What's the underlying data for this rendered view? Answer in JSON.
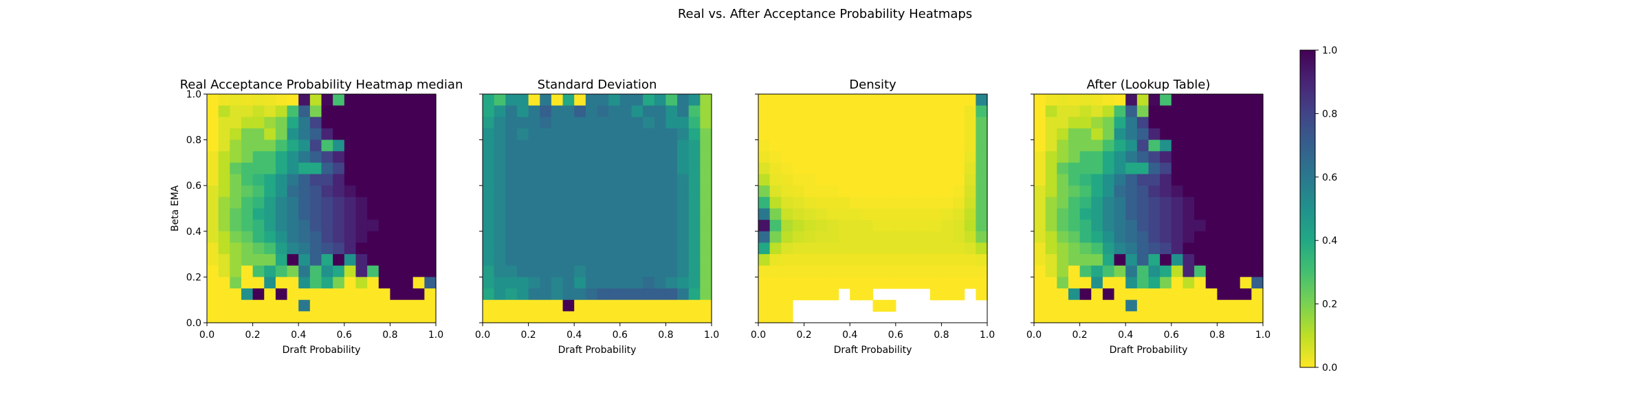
{
  "figure": {
    "title": "Real vs. After Acceptance Probability Heatmaps"
  },
  "chart_data": [
    {
      "type": "heatmap",
      "title": "Real Acceptance Probability Heatmap median",
      "xlabel": "Draft Probability",
      "ylabel": "Beta EMA",
      "xlim": [
        0,
        1
      ],
      "ylim": [
        0,
        1
      ],
      "xticks": [
        "0.0",
        "0.2",
        "0.4",
        "0.6",
        "0.8",
        "1.0"
      ],
      "yticks": [
        "0.0",
        "0.2",
        "0.4",
        "0.6",
        "0.8",
        "1.0"
      ],
      "grid_size": [
        20,
        20
      ],
      "rows_top_to_bottom": [
        "0.00 0.02 0.03 0.02 0.03 0.02 0.01 0.00 0.95 0.10 0.98 0.30 1.0 1.0 1.0 1.0 1.0 1.0 1.0 1.0",
        "0.00 0.10 0.05 0.05 0.08 0.05 0.10 0.30 0.70 0.20 1.0 1.0 1.0 1.0 1.0 1.0 1.0 1.0 1.0 1.0",
        "0.00 0.05 0.05 0.10 0.10 0.15 0.20 0.40 0.60 0.80 1.0 1.0 1.0 1.0 1.0 1.0 1.0 1.0 1.0 1.0",
        "0.00 0.05 0.10 0.20 0.20 0.10 0.20 0.50 0.60 0.70 0.90 1.0 1.0 1.0 1.0 1.0 1.0 1.0 1.0 1.0",
        "0.00 0.05 0.15 0.20 0.20 0.20 0.30 0.40 0.50 0.80 0.30 0.50 1.0 1.0 1.0 1.0 1.0 1.0 1.0 1.0",
        "0.02 0.10 0.15 0.20 0.30 0.30 0.40 0.50 0.60 0.70 0.80 0.90 1.0 1.0 1.0 1.0 1.0 1.0 1.0 1.0",
        "0.02 0.10 0.25 0.30 0.30 0.30 0.40 0.50 0.40 0.40 0.70 0.80 1.0 1.0 1.0 1.0 1.0 1.0 1.0 1.0",
        "0.02 0.10 0.20 0.30 0.35 0.40 0.50 0.60 0.70 0.80 0.80 0.90 1.0 1.0 1.0 1.0 1.0 1.0 1.0 1.0",
        "0.05 0.10 0.20 0.25 0.30 0.40 0.50 0.65 0.70 0.75 0.85 0.90 0.95 1.0 1.0 1.0 1.0 1.0 1.0 1.0",
        "0.05 0.15 0.20 0.30 0.35 0.45 0.55 0.60 0.70 0.75 0.80 0.85 0.90 0.95 1.0 1.0 1.0 1.0 1.0 1.0",
        "0.05 0.15 0.25 0.30 0.40 0.45 0.55 0.60 0.70 0.75 0.80 0.85 0.90 0.95 1.0 1.0 1.0 1.0 1.0 1.0",
        "0.05 0.15 0.25 0.30 0.35 0.45 0.55 0.60 0.65 0.75 0.80 0.85 0.90 0.95 0.95 1.0 1.0 1.0 1.0 1.0",
        "0.05 0.10 0.20 0.25 0.35 0.40 0.50 0.60 0.65 0.70 0.80 0.85 0.90 0.95 1.0 1.0 1.0 1.0 1.0 1.0",
        "0.02 0.10 0.15 0.20 0.25 0.30 0.45 0.55 0.60 0.70 0.75 0.80 0.90 1.0 1.0 1.0 1.0 1.0 1.0 1.0",
        "0.02 0.05 0.15 0.20 0.20 0.20 0.40 1.0 0.50 0.70 0.40 1.0 0.50 0.90 1.0 1.0 1.0 1.0 1.0 1.0",
        "0.00 0.05 0.15 0.00 0.30 0.40 0.30 0.20 0.60 0.30 0.50 0.40 0.10 0.90 0.30 1.0 1.0 1.0 1.0 1.0",
        "0.00 0.00 0.20 0.00 0.00 0.50 0.00 0.00 0.50 0.30 0.40 0.20 0.00 0.10 0.00 1.0 1.0 1.0 0.00 0.70",
        "0.00 0.00 0.00 0.50 1.0 0.00 1.0 0.00 0.00 0.00 0.00 0.00 0.00 0.00 0.00 0.00 1.0 1.0 1.0 0.00",
        "0.00 0.00 0.00 0.00 0.00 0.00 0.00 0.00 0.60 0.00 0.00 0.00 0.00 0.00 0.00 0.00 0.00 0.00 0.00 0.00",
        "0.00 0.00 0.00 0.00 0.00 0.00 0.00 0.00 0.00 0.00 0.00 0.00 0.00 0.00 0.00 0.00 0.00 0.00 0.00 0.00"
      ]
    },
    {
      "type": "heatmap",
      "title": "Standard Deviation",
      "xlabel": "Draft Probability",
      "ylabel": "",
      "xlim": [
        0,
        1
      ],
      "ylim": [
        0,
        1
      ],
      "xticks": [
        "0.0",
        "0.2",
        "0.4",
        "0.6",
        "0.8",
        "1.0"
      ],
      "yticks": [
        "",
        "",
        "",
        "",
        "",
        ""
      ],
      "grid_size": [
        20,
        20
      ],
      "rows_top_to_bottom": [
        "0.40 0.30 0.50 0.50 0.00 0.60 0.00 0.40 0.00 0.60 0.60 0.50 0.60 0.60 0.40 0.50 0.30 0.60 0.50 0.15",
        "0.40 0.50 0.60 0.50 0.60 0.70 0.60 0.60 0.70 0.60 0.65 0.60 0.60 0.50 0.60 0.60 0.50 0.60 0.30 0.15",
        "0.45 0.55 0.60 0.60 0.60 0.65 0.60 0.60 0.60 0.60 0.60 0.60 0.60 0.60 0.55 0.60 0.50 0.50 0.35 0.15",
        "0.50 0.55 0.60 0.55 0.60 0.60 0.60 0.60 0.60 0.60 0.60 0.60 0.60 0.60 0.60 0.60 0.60 0.55 0.40 0.20",
        "0.50 0.55 0.60 0.60 0.60 0.60 0.60 0.60 0.60 0.60 0.60 0.60 0.60 0.60 0.60 0.60 0.60 0.50 0.45 0.20",
        "0.50 0.55 0.60 0.60 0.60 0.60 0.60 0.60 0.60 0.60 0.60 0.60 0.60 0.60 0.60 0.60 0.60 0.50 0.45 0.20",
        "0.50 0.55 0.60 0.60 0.60 0.60 0.60 0.60 0.60 0.60 0.60 0.60 0.60 0.60 0.60 0.60 0.60 0.50 0.45 0.20",
        "0.50 0.55 0.60 0.60 0.60 0.60 0.60 0.60 0.60 0.60 0.60 0.60 0.60 0.60 0.60 0.60 0.60 0.55 0.45 0.20",
        "0.50 0.55 0.60 0.60 0.60 0.60 0.60 0.60 0.60 0.60 0.60 0.60 0.60 0.60 0.60 0.60 0.60 0.55 0.45 0.20",
        "0.50 0.55 0.60 0.60 0.60 0.60 0.60 0.60 0.60 0.60 0.60 0.60 0.60 0.60 0.60 0.60 0.60 0.55 0.45 0.20",
        "0.50 0.55 0.60 0.60 0.60 0.60 0.60 0.60 0.60 0.60 0.60 0.60 0.60 0.60 0.60 0.60 0.60 0.55 0.45 0.20",
        "0.50 0.55 0.60 0.60 0.60 0.60 0.60 0.60 0.60 0.60 0.60 0.60 0.60 0.60 0.60 0.60 0.60 0.55 0.45 0.20",
        "0.50 0.55 0.60 0.60 0.60 0.60 0.60 0.60 0.60 0.60 0.60 0.60 0.60 0.60 0.60 0.60 0.60 0.55 0.45 0.20",
        "0.50 0.55 0.60 0.60 0.60 0.60 0.60 0.60 0.60 0.60 0.60 0.60 0.60 0.60 0.60 0.60 0.60 0.55 0.45 0.20",
        "0.50 0.55 0.60 0.60 0.60 0.60 0.60 0.60 0.60 0.60 0.60 0.60 0.60 0.60 0.60 0.60 0.60 0.55 0.45 0.20",
        "0.45 0.55 0.55 0.60 0.60 0.60 0.60 0.60 0.55 0.60 0.60 0.60 0.60 0.60 0.60 0.60 0.60 0.55 0.45 0.20",
        "0.45 0.50 0.50 0.50 0.55 0.60 0.55 0.60 0.50 0.60 0.60 0.60 0.60 0.60 0.65 0.60 0.55 0.50 0.45 0.20",
        "0.40 0.50 0.45 0.50 0.60 0.60 0.55 0.60 0.60 0.65 0.70 0.70 0.70 0.70 0.70 0.70 0.70 0.60 0.40 0.20",
        "0.00 0.00 0.00 0.00 0.00 0.00 0.00 1.00 0.00 0.00 0.00 0.00 0.00 0.00 0.00 0.00 0.00 0.00 0.00 0.00",
        "0.00 0.00 0.00 0.00 0.00 0.00 0.00 0.00 0.00 0.00 0.00 0.00 0.00 0.00 0.00 0.00 0.00 0.00 0.00 0.00"
      ]
    },
    {
      "type": "heatmap",
      "title": "Density",
      "xlabel": "Draft Probability",
      "ylabel": "",
      "xlim": [
        0,
        1
      ],
      "ylim": [
        0,
        1
      ],
      "xticks": [
        "0.0",
        "0.2",
        "0.4",
        "0.6",
        "0.8",
        "1.0"
      ],
      "yticks": [
        "",
        "",
        "",
        "",
        "",
        ""
      ],
      "grid_size": [
        20,
        20
      ],
      "rows_top_to_bottom": [
        "0.00 0.00 0.00 0.00 0.00 0.00 0.00 0.00 0.00 0.00 0.00 0.00 0.00 0.00 0.00 0.00 0.00 0.00 0.00 0.55",
        "0.00 0.00 0.00 0.00 0.00 0.00 0.00 0.00 0.00 0.00 0.00 0.00 0.00 0.00 0.00 0.00 0.00 0.00 0.02 0.30",
        "0.00 0.00 0.00 0.00 0.00 0.00 0.00 0.00 0.00 0.00 0.00 0.00 0.00 0.00 0.00 0.00 0.00 0.00 0.02 0.25",
        "0.00 0.00 0.00 0.00 0.00 0.00 0.00 0.00 0.00 0.00 0.00 0.00 0.00 0.00 0.00 0.00 0.00 0.00 0.02 0.25",
        "0.01 0.00 0.00 0.00 0.00 0.00 0.00 0.00 0.00 0.00 0.00 0.00 0.00 0.00 0.00 0.00 0.00 0.00 0.02 0.25",
        "0.02 0.01 0.00 0.00 0.00 0.00 0.00 0.00 0.00 0.00 0.00 0.00 0.00 0.00 0.00 0.00 0.00 0.00 0.03 0.25",
        "0.05 0.02 0.01 0.00 0.00 0.00 0.00 0.00 0.00 0.00 0.00 0.00 0.00 0.00 0.00 0.00 0.00 0.00 0.04 0.25",
        "0.10 0.03 0.02 0.01 0.01 0.00 0.00 0.00 0.00 0.00 0.00 0.00 0.00 0.00 0.00 0.00 0.00 0.00 0.05 0.25",
        "0.20 0.05 0.03 0.02 0.01 0.01 0.01 0.00 0.00 0.00 0.00 0.00 0.00 0.00 0.00 0.00 0.00 0.01 0.06 0.25",
        "0.35 0.10 0.05 0.04 0.03 0.02 0.02 0.02 0.01 0.01 0.01 0.01 0.01 0.01 0.01 0.01 0.01 0.02 0.07 0.25",
        "0.60 0.20 0.08 0.06 0.05 0.04 0.03 0.03 0.03 0.02 0.02 0.02 0.02 0.02 0.02 0.02 0.03 0.04 0.09 0.25",
        "0.95 0.30 0.12 0.09 0.07 0.06 0.05 0.04 0.04 0.04 0.03 0.03 0.03 0.03 0.03 0.03 0.04 0.05 0.10 0.25",
        "0.65 0.20 0.10 0.07 0.06 0.05 0.05 0.04 0.04 0.04 0.04 0.04 0.04 0.04 0.04 0.04 0.04 0.05 0.08 0.20",
        "0.40 0.10 0.05 0.04 0.04 0.04 0.04 0.04 0.04 0.04 0.04 0.04 0.04 0.04 0.04 0.04 0.04 0.04 0.05 0.10",
        "0.10 0.03 0.02 0.02 0.02 0.02 0.02 0.02 0.02 0.02 0.02 0.02 0.02 0.02 0.02 0.02 0.02 0.02 0.02 0.03",
        "0.01 0.01 0.01 0.01 0.01 0.01 0.01 0.01 0.01 0.01 0.01 0.01 0.01 0.01 0.01 0.01 0.01 0.01 0.01 0.01",
        "0.00 0.00 0.00 0.00 0.00 0.00 0.00 0.00 0.00 0.00 0.00 0.00 0.00 0.00 0.00 0.00 0.00 0.00 0.00 0.00",
        "0.00 0.00 0.00 0.00 0.00 0.00 0.00 null 0.00 0.00 null null null null null 0.00 0.00 0.00 null 0.00",
        "0.00 0.00 0.00 null null null null null null null 0.00 0.00 null null null null null null null null",
        "0.00 0.00 0.00 null null null null null null null null null null null null null null null null null"
      ]
    },
    {
      "type": "heatmap",
      "title": "After (Lookup Table)",
      "xlabel": "Draft Probability",
      "ylabel": "",
      "xlim": [
        0,
        1
      ],
      "ylim": [
        0,
        1
      ],
      "xticks": [
        "0.0",
        "0.2",
        "0.4",
        "0.6",
        "0.8",
        "1.0"
      ],
      "yticks": [
        "",
        "",
        "",
        "",
        "",
        ""
      ],
      "grid_size": [
        20,
        20
      ],
      "same_as_panel": 0
    }
  ],
  "colorbar": {
    "min": 0,
    "max": 1,
    "ticks": [
      "0.0",
      "0.2",
      "0.4",
      "0.6",
      "0.8",
      "1.0"
    ],
    "colormap": "viridis_r"
  }
}
